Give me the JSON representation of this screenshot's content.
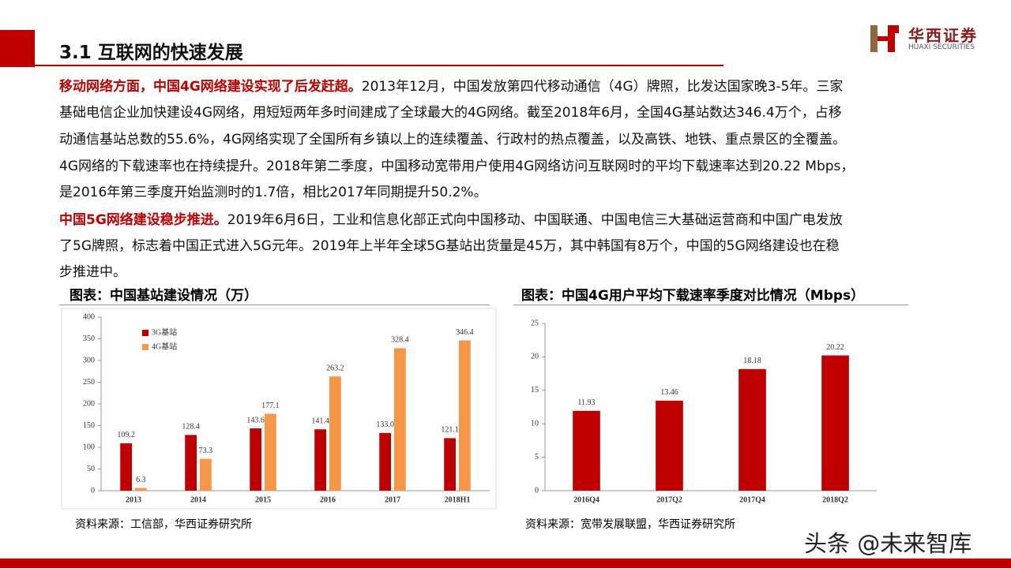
{
  "header": {
    "title": "3.1 互联网的快速发展",
    "logo_name": "华西证券",
    "logo_sub": "HUAXI SECURITIES"
  },
  "paragraphs": [
    {
      "lead": "移动网络方面，中国4G网络建设实现了后发赶超。",
      "lines": [
        "2013年12月，中国发放第四代移动通信（4G）牌照，比发达国家晚3-5年。三家",
        "基础电信企业加快建设4G网络，用短短两年多时间建成了全球最大的4G网络。截至2018年6月，全国4G基站数达346.4万个，占移",
        "动通信基站总数的55.6%，4G网络实现了全国所有乡镇以上的连续覆盖、行政村的热点覆盖，以及高铁、地铁、重点景区的全覆盖。",
        "4G网络的下载速率也在持续提升。2018年第二季度，中国移动宽带用户使用4G网络访问互联网时的平均下载速率达到20.22 Mbps，",
        "是2016年第三季度开始监测时的1.7倍，相比2017年同期提升50.2%。"
      ]
    },
    {
      "lead": "中国5G网络建设稳步推进。",
      "lines": [
        "2019年6月6日，工业和信息化部正式向中国移动、中国联通、中国电信三大基础运营商和中国广电发放",
        "了5G牌照，标志着中国正式进入5G元年。2019年上半年全球5G基站出货量是45万，其中韩国有8万个，中国的5G网络建设也在稳",
        "步推进中。"
      ]
    }
  ],
  "chart_data": [
    {
      "type": "bar",
      "title": "图表：中国基站建设情况（万）",
      "source": "资料来源：工信部，华西证券研究所",
      "categories": [
        "2013",
        "2014",
        "2015",
        "2016",
        "2017",
        "2018H1"
      ],
      "series": [
        {
          "name": "3G基站",
          "color": "#c00000",
          "values": [
            109.2,
            128.4,
            143.6,
            141.4,
            133.0,
            121.1
          ],
          "value_labels": [
            "109.2",
            "128.4",
            "143.6",
            "141.4",
            "133.0",
            "121.1"
          ]
        },
        {
          "name": "4G基站",
          "color": "#f79646",
          "values": [
            6.3,
            73.3,
            177.1,
            263.2,
            328.4,
            346.4
          ]
        }
      ],
      "ylim": [
        0,
        400
      ],
      "yticks": [
        0,
        50,
        100,
        150,
        200,
        250,
        300,
        350,
        400
      ],
      "legend": "top-left",
      "grid": false
    },
    {
      "type": "bar",
      "title": "图表：中国4G用户平均下载速率季度对比情况（Mbps）",
      "source": "资料来源：宽带发展联盟，华西证券研究所",
      "categories": [
        "2016Q4",
        "2017Q2",
        "2017Q4",
        "2018Q2"
      ],
      "values": [
        11.93,
        13.46,
        18.18,
        20.22
      ],
      "color": "#c00000",
      "ylim": [
        0,
        25
      ],
      "yticks": [
        0,
        5,
        10,
        15,
        20,
        25
      ],
      "grid": false
    }
  ],
  "watermark": "头条 @未来智库"
}
